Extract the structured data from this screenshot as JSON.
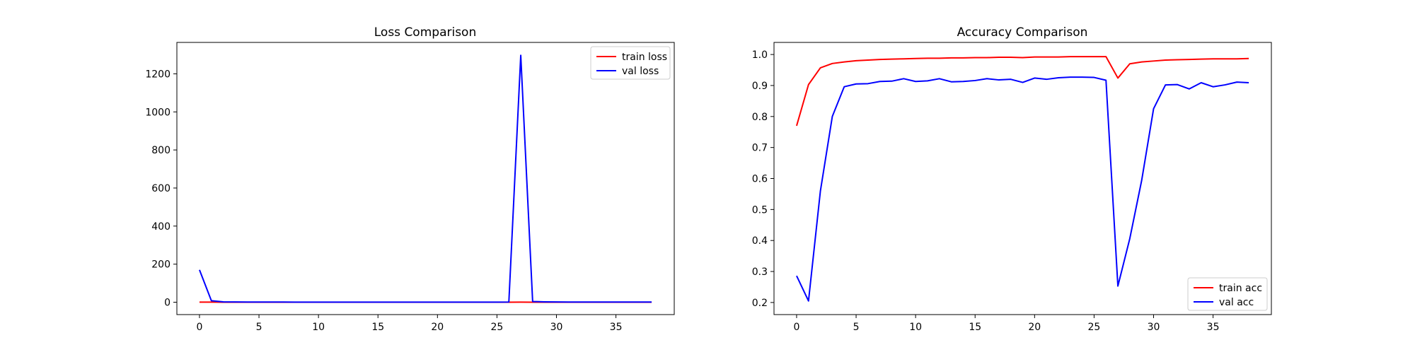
{
  "chart_data": [
    {
      "type": "line",
      "title": "Loss Comparison",
      "xlabel": "",
      "ylabel": "",
      "xlim": [
        -1.9,
        39.9
      ],
      "ylim": [
        -65,
        1365
      ],
      "xticks": [
        0,
        5,
        10,
        15,
        20,
        25,
        30,
        35
      ],
      "yticks": [
        0,
        200,
        400,
        600,
        800,
        1000,
        1200
      ],
      "legend": "top-right",
      "grid": false,
      "x": [
        0,
        1,
        2,
        3,
        4,
        5,
        6,
        7,
        8,
        9,
        10,
        11,
        12,
        13,
        14,
        15,
        16,
        17,
        18,
        19,
        20,
        21,
        22,
        23,
        24,
        25,
        26,
        27,
        28,
        29,
        30,
        31,
        32,
        33,
        34,
        35,
        36,
        37,
        38
      ],
      "series": [
        {
          "name": "train loss",
          "color": "#ff0000",
          "values": [
            0.6,
            0.3,
            0.15,
            0.12,
            0.1,
            0.09,
            0.08,
            0.07,
            0.07,
            0.06,
            0.06,
            0.06,
            0.05,
            0.05,
            0.05,
            0.05,
            0.04,
            0.04,
            0.04,
            0.04,
            0.04,
            0.03,
            0.03,
            0.03,
            0.03,
            0.03,
            0.03,
            0.3,
            0.1,
            0.08,
            0.07,
            0.06,
            0.06,
            0.05,
            0.05,
            0.05,
            0.05,
            0.04,
            0.04
          ]
        },
        {
          "name": "val loss",
          "color": "#0000ff",
          "values": [
            170,
            8,
            2,
            1.2,
            0.9,
            0.8,
            0.7,
            0.7,
            0.6,
            0.6,
            0.6,
            0.6,
            0.6,
            0.6,
            0.6,
            0.6,
            0.6,
            0.6,
            0.6,
            0.6,
            0.6,
            0.6,
            0.6,
            0.6,
            0.6,
            0.6,
            1.0,
            1297,
            3.5,
            2,
            1.2,
            1,
            0.9,
            0.8,
            0.8,
            0.8,
            0.8,
            0.8,
            0.8
          ]
        }
      ]
    },
    {
      "type": "line",
      "title": "Accuracy Comparison",
      "xlabel": "",
      "ylabel": "",
      "xlim": [
        -1.9,
        39.9
      ],
      "ylim": [
        0.161,
        1.039
      ],
      "xticks": [
        0,
        5,
        10,
        15,
        20,
        25,
        30,
        35
      ],
      "yticks": [
        0.2,
        0.3,
        0.4,
        0.5,
        0.6,
        0.7,
        0.8,
        0.9,
        1.0
      ],
      "ytick_labels": [
        "0.2",
        "0.3",
        "0.4",
        "0.5",
        "0.6",
        "0.7",
        "0.8",
        "0.9",
        "1.0"
      ],
      "legend": "bottom-right",
      "grid": false,
      "x": [
        0,
        1,
        2,
        3,
        4,
        5,
        6,
        7,
        8,
        9,
        10,
        11,
        12,
        13,
        14,
        15,
        16,
        17,
        18,
        19,
        20,
        21,
        22,
        23,
        24,
        25,
        26,
        27,
        28,
        29,
        30,
        31,
        32,
        33,
        34,
        35,
        36,
        37,
        38
      ],
      "series": [
        {
          "name": "train acc",
          "color": "#ff0000",
          "values": [
            0.77,
            0.903,
            0.957,
            0.971,
            0.976,
            0.98,
            0.982,
            0.984,
            0.985,
            0.986,
            0.987,
            0.988,
            0.988,
            0.989,
            0.989,
            0.99,
            0.99,
            0.991,
            0.991,
            0.99,
            0.992,
            0.992,
            0.992,
            0.993,
            0.993,
            0.993,
            0.993,
            0.924,
            0.97,
            0.976,
            0.979,
            0.982,
            0.983,
            0.984,
            0.985,
            0.986,
            0.986,
            0.986,
            0.987
          ]
        },
        {
          "name": "val acc",
          "color": "#0000ff",
          "values": [
            0.286,
            0.205,
            0.56,
            0.8,
            0.896,
            0.905,
            0.906,
            0.913,
            0.914,
            0.922,
            0.913,
            0.915,
            0.922,
            0.912,
            0.913,
            0.916,
            0.922,
            0.918,
            0.92,
            0.91,
            0.924,
            0.92,
            0.925,
            0.927,
            0.927,
            0.926,
            0.917,
            0.253,
            0.406,
            0.594,
            0.825,
            0.902,
            0.903,
            0.889,
            0.909,
            0.896,
            0.902,
            0.911,
            0.909
          ]
        }
      ]
    }
  ]
}
